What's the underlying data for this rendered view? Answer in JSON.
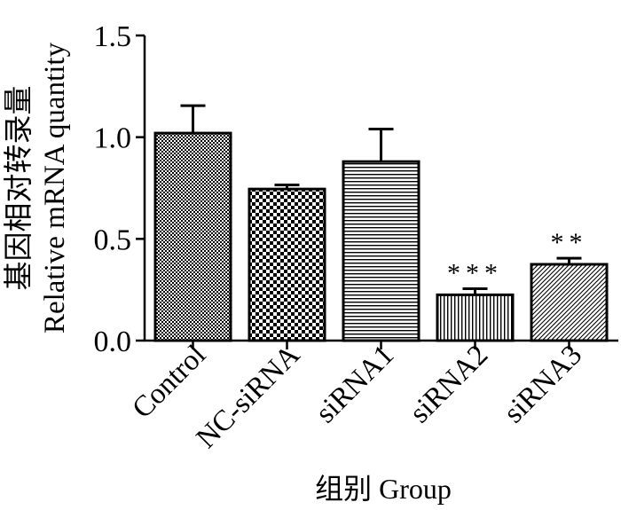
{
  "chart_data": {
    "type": "bar",
    "title": "",
    "xlabel": "组别 Group",
    "ylabel_cn": "基因相对转录量",
    "ylabel_en": "Relative mRNA quantity",
    "ylim": [
      0,
      1.5
    ],
    "yticks": [
      "0.0",
      "0.5",
      "1.0",
      "1.5"
    ],
    "grid": false,
    "legend": "none",
    "categories": [
      "Control",
      "NC-siRNA",
      "siRNA1",
      "siRNA2",
      "siRNA3"
    ],
    "values": [
      1.02,
      0.745,
      0.88,
      0.225,
      0.375
    ],
    "errors": [
      0.135,
      0.02,
      0.16,
      0.03,
      0.03
    ],
    "significance": [
      "",
      "",
      "",
      "***",
      "**"
    ],
    "patterns": [
      "dense-check",
      "checker",
      "horizontal-lines",
      "vertical-lines",
      "diagonal-lines"
    ]
  }
}
